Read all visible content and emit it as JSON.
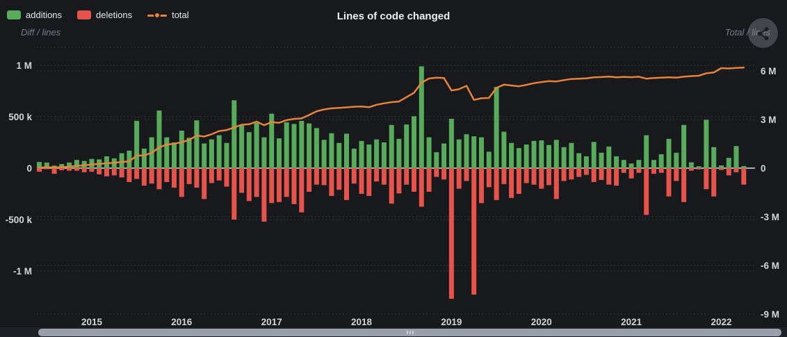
{
  "header": {
    "title": "Lines of code changed"
  },
  "legend": {
    "items": [
      {
        "label": "additions",
        "color": "#57ab5b",
        "marker": "rect"
      },
      {
        "label": "deletions",
        "color": "#e5534b",
        "marker": "rect"
      },
      {
        "label": "total",
        "color": "#e8833a",
        "marker": "line-dot"
      }
    ]
  },
  "left_axis": {
    "name": "Diff / lines",
    "ticks": [
      {
        "label": "1 M",
        "value": 1000000
      },
      {
        "label": "500 k",
        "value": 500000
      },
      {
        "label": "0",
        "value": 0
      },
      {
        "label": "-500 k",
        "value": -500000
      },
      {
        "label": "-1 M",
        "value": -1000000
      }
    ]
  },
  "right_axis": {
    "name": "Total / lines",
    "ticks": [
      {
        "label": "6 M",
        "value": 6000000
      },
      {
        "label": "3 M",
        "value": 3000000
      },
      {
        "label": "0",
        "value": 0
      },
      {
        "label": "-3 M",
        "value": -3000000
      },
      {
        "label": "-6 M",
        "value": -6000000
      },
      {
        "label": "-9 M",
        "value": -9000000
      }
    ]
  },
  "x_axis": {
    "year_labels": [
      "2015",
      "2016",
      "2017",
      "2018",
      "2019",
      "2020",
      "2021",
      "2022"
    ]
  },
  "chart_data": {
    "type": "bar+line",
    "title": "Lines of code changed",
    "x": [
      "2014-06",
      "2014-07",
      "2014-08",
      "2014-09",
      "2014-10",
      "2014-11",
      "2014-12",
      "2015-01",
      "2015-02",
      "2015-03",
      "2015-04",
      "2015-05",
      "2015-06",
      "2015-07",
      "2015-08",
      "2015-09",
      "2015-10",
      "2015-11",
      "2015-12",
      "2016-01",
      "2016-02",
      "2016-03",
      "2016-04",
      "2016-05",
      "2016-06",
      "2016-07",
      "2016-08",
      "2016-09",
      "2016-10",
      "2016-11",
      "2016-12",
      "2017-01",
      "2017-02",
      "2017-03",
      "2017-04",
      "2017-05",
      "2017-06",
      "2017-07",
      "2017-08",
      "2017-09",
      "2017-10",
      "2017-11",
      "2017-12",
      "2018-01",
      "2018-02",
      "2018-03",
      "2018-04",
      "2018-05",
      "2018-06",
      "2018-07",
      "2018-08",
      "2018-09",
      "2018-10",
      "2018-11",
      "2018-12",
      "2019-01",
      "2019-02",
      "2019-03",
      "2019-04",
      "2019-05",
      "2019-06",
      "2019-07",
      "2019-08",
      "2019-09",
      "2019-10",
      "2019-11",
      "2019-12",
      "2020-01",
      "2020-02",
      "2020-03",
      "2020-04",
      "2020-05",
      "2020-06",
      "2020-07",
      "2020-08",
      "2020-09",
      "2020-10",
      "2020-11",
      "2020-12",
      "2021-01",
      "2021-02",
      "2021-03",
      "2021-04",
      "2021-05",
      "2021-06",
      "2021-07",
      "2021-08",
      "2021-09",
      "2021-10",
      "2021-11",
      "2021-12",
      "2022-01",
      "2022-02",
      "2022-03",
      "2022-04"
    ],
    "series": [
      {
        "name": "additions",
        "type": "bar",
        "axis": "left",
        "color": "#57ab5b",
        "values": [
          60000,
          55000,
          25000,
          40000,
          55000,
          80000,
          70000,
          90000,
          85000,
          115000,
          95000,
          145000,
          170000,
          460000,
          190000,
          300000,
          560000,
          300000,
          250000,
          365000,
          295000,
          465000,
          240000,
          280000,
          320000,
          245000,
          660000,
          415000,
          350000,
          440000,
          300000,
          530000,
          290000,
          445000,
          430000,
          460000,
          435000,
          390000,
          275000,
          340000,
          245000,
          335000,
          190000,
          265000,
          230000,
          280000,
          250000,
          420000,
          285000,
          425000,
          505000,
          990000,
          300000,
          155000,
          240000,
          480000,
          280000,
          330000,
          310000,
          300000,
          160000,
          790000,
          355000,
          245000,
          195000,
          230000,
          265000,
          270000,
          225000,
          275000,
          205000,
          245000,
          145000,
          115000,
          255000,
          150000,
          210000,
          115000,
          80000,
          45000,
          80000,
          320000,
          80000,
          135000,
          285000,
          150000,
          420000,
          57000,
          18000,
          470000,
          205000,
          27000,
          100000,
          215000,
          20000
        ]
      },
      {
        "name": "deletions",
        "type": "bar",
        "axis": "left",
        "color": "#e5534b",
        "values": [
          -35000,
          -10000,
          -55000,
          -20000,
          -25000,
          -25000,
          -40000,
          -35000,
          -60000,
          -80000,
          -70000,
          -90000,
          -135000,
          -105000,
          -170000,
          -150000,
          -205000,
          -135000,
          -190000,
          -280000,
          -155000,
          -190000,
          -300000,
          -145000,
          -120000,
          -180000,
          -500000,
          -240000,
          -320000,
          -280000,
          -520000,
          -340000,
          -330000,
          -280000,
          -350000,
          -430000,
          -230000,
          -160000,
          -165000,
          -270000,
          -210000,
          -310000,
          -150000,
          -250000,
          -270000,
          -130000,
          -160000,
          -345000,
          -245000,
          -160000,
          -230000,
          -375000,
          -230000,
          -85000,
          -110000,
          -1270000,
          -200000,
          -125000,
          -1230000,
          -340000,
          -185000,
          -310000,
          -155000,
          -290000,
          -250000,
          -145000,
          -160000,
          -200000,
          -165000,
          -300000,
          -125000,
          -110000,
          -85000,
          -65000,
          -135000,
          -115000,
          -160000,
          -170000,
          -45000,
          -100000,
          -45000,
          -455000,
          -55000,
          -45000,
          -275000,
          -125000,
          -330000,
          -25000,
          -12000,
          -205000,
          -275000,
          -18000,
          -70000,
          -40000,
          -160000
        ]
      },
      {
        "name": "total",
        "type": "line",
        "axis": "right",
        "color": "#e8833a",
        "values": [
          40000,
          50000,
          40000,
          60000,
          90000,
          140000,
          170000,
          230000,
          260000,
          300000,
          330000,
          380000,
          420000,
          770000,
          790000,
          940000,
          1290000,
          1450000,
          1510000,
          1600000,
          1740000,
          2010000,
          1950000,
          2090000,
          2290000,
          2350000,
          2510000,
          2680000,
          2710000,
          2870000,
          2650000,
          2840000,
          2800000,
          2960000,
          3040000,
          3070000,
          3280000,
          3510000,
          3620000,
          3690000,
          3720000,
          3750000,
          3790000,
          3800000,
          3760000,
          3910000,
          4000000,
          4070000,
          4110000,
          4380000,
          4650000,
          5270000,
          5530000,
          5580000,
          5560000,
          4790000,
          4870000,
          5080000,
          4210000,
          4310000,
          4330000,
          4950000,
          5150000,
          5100000,
          5050000,
          5140000,
          5240000,
          5310000,
          5370000,
          5350000,
          5430000,
          5500000,
          5520000,
          5540000,
          5600000,
          5620000,
          5650000,
          5600000,
          5630000,
          5610000,
          5640000,
          5520000,
          5560000,
          5580000,
          5600000,
          5580000,
          5640000,
          5680000,
          5700000,
          5850000,
          5900000,
          6170000,
          6150000,
          6180000,
          6200000
        ]
      }
    ],
    "layout_hints": {
      "left_axis_range": [
        -1250000,
        1200000
      ],
      "right_axis_range": [
        -9500000,
        7500000
      ],
      "grid": "dashed",
      "legend_position": "top-left",
      "background": "#17191d"
    }
  },
  "toolbar": {
    "share_button": "share"
  },
  "scrollbar": {
    "visible": true,
    "extent": "100%"
  }
}
